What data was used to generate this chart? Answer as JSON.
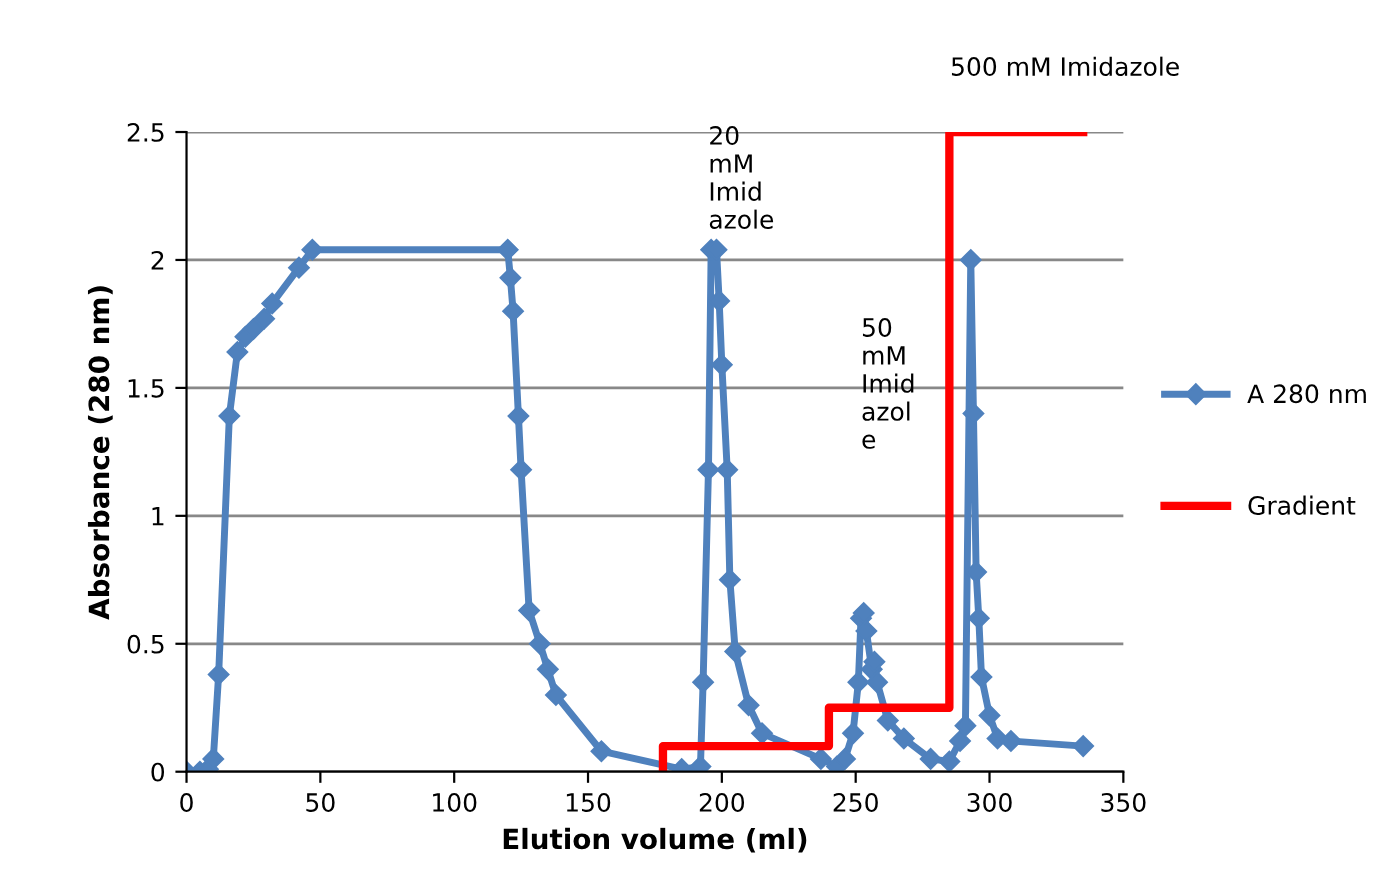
{
  "chart_data": {
    "type": "line",
    "xlabel": "Elution volume (ml)",
    "ylabel": "Absorbance (280 nm)",
    "xlim": [
      0,
      350
    ],
    "xticks": [
      0,
      50,
      100,
      150,
      200,
      250,
      300,
      350
    ],
    "ylim": [
      0,
      2.5
    ],
    "yticks": [
      0,
      0.5,
      1,
      1.5,
      2,
      2.5
    ],
    "grid": "y",
    "legend": "right",
    "series": [
      {
        "name": "A 280 nm",
        "color": "#4f81bd",
        "marker": "diamond",
        "x": [
          0,
          5,
          8,
          10,
          12,
          16,
          19,
          22,
          25,
          29,
          32,
          42,
          47,
          120,
          121,
          122,
          124,
          125,
          128,
          132,
          135,
          138,
          155,
          185,
          192,
          193,
          195,
          196,
          198,
          199,
          200,
          202,
          203,
          205,
          210,
          215,
          237,
          243,
          246,
          249,
          251,
          252,
          253,
          254,
          256,
          257,
          258,
          262,
          268,
          278,
          285,
          289,
          291,
          293,
          294,
          295,
          296,
          297,
          300,
          303,
          308,
          335
        ],
        "values": [
          0,
          0,
          0.01,
          0.05,
          0.38,
          1.39,
          1.64,
          1.7,
          1.73,
          1.77,
          1.83,
          1.97,
          2.04,
          2.04,
          1.93,
          1.8,
          1.39,
          1.18,
          0.63,
          0.5,
          0.4,
          0.3,
          0.08,
          0.01,
          0.02,
          0.35,
          1.18,
          2.04,
          2.04,
          1.84,
          1.59,
          1.18,
          0.75,
          0.47,
          0.26,
          0.15,
          0.05,
          0.02,
          0.05,
          0.15,
          0.35,
          0.6,
          0.62,
          0.55,
          0.4,
          0.43,
          0.35,
          0.2,
          0.13,
          0.05,
          0.04,
          0.12,
          0.18,
          2.0,
          1.4,
          0.78,
          0.6,
          0.37,
          0.22,
          0.13,
          0.12,
          0.1
        ]
      },
      {
        "name": "Gradient",
        "color": "#ff0000",
        "marker": "none",
        "x": [
          178,
          178,
          240,
          240,
          285,
          285,
          335
        ],
        "values": [
          0,
          0.1,
          0.1,
          0.25,
          0.25,
          2.5,
          2.5
        ]
      }
    ],
    "annotations": [
      "20\nmM\nImid\nazole",
      "50\nmM\nImid\nazol\ne",
      "500 mM Imidazole"
    ]
  }
}
